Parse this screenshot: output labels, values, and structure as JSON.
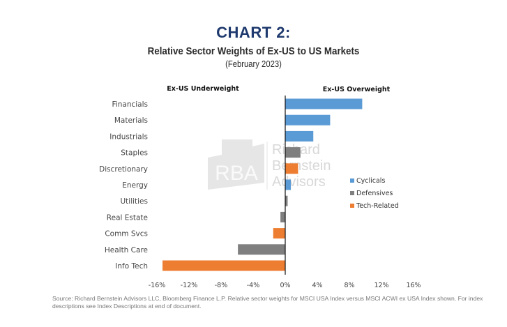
{
  "chart_data": {
    "type": "bar",
    "orientation": "horizontal",
    "title": "CHART 2:",
    "subtitle": "Relative Sector Weights of Ex-US to US Markets",
    "date_label": "(February 2023)",
    "left_header": "Ex-US Underweight",
    "right_header": "Ex-US Overweight",
    "xlabel": "",
    "ylabel": "",
    "xlim": [
      -16,
      16
    ],
    "x_ticks": [
      -16,
      -12,
      -8,
      -4,
      0,
      4,
      8,
      12,
      16
    ],
    "x_tick_labels": [
      "-16%",
      "-12%",
      "-8%",
      "-4%",
      "0%",
      "4%",
      "8%",
      "12%",
      "16%"
    ],
    "grid": false,
    "legend_position": "right",
    "groups": [
      {
        "name": "Cyclicals",
        "color": "#5b9bd5"
      },
      {
        "name": "Defensives",
        "color": "#7f7f7f"
      },
      {
        "name": "Tech-Related",
        "color": "#ed7d31"
      }
    ],
    "categories": [
      "Financials",
      "Materials",
      "Industrials",
      "Staples",
      "Discretionary",
      "Energy",
      "Utilities",
      "Real Estate",
      "Comm Svcs",
      "Health Care",
      "Info Tech"
    ],
    "values": [
      9.6,
      5.6,
      3.5,
      1.9,
      1.6,
      0.7,
      0.3,
      -0.6,
      -1.5,
      -5.9,
      -15.3
    ],
    "bar_groups": [
      "Cyclicals",
      "Cyclicals",
      "Cyclicals",
      "Defensives",
      "Tech-Related",
      "Cyclicals",
      "Defensives",
      "Defensives",
      "Tech-Related",
      "Defensives",
      "Tech-Related"
    ],
    "unit": "%"
  },
  "watermark": {
    "monogram": "RBA",
    "lines": [
      "Richard",
      "Bernstein",
      "Advisors"
    ]
  },
  "footnote": "Source:  Richard Bernstein Advisors LLC, Bloomberg Finance L.P. Relative sector weights for MSCI USA Index versus MSCI ACWI ex USA Index shown. For index descriptions see Index Descriptions at end of document."
}
